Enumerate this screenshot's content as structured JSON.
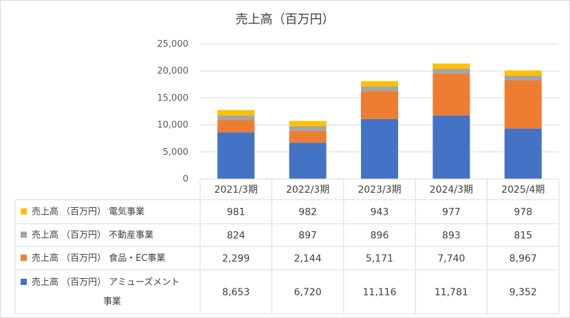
{
  "chart_data": {
    "type": "bar",
    "stacked": true,
    "title": "売上高（百万円）",
    "ylim": [
      0,
      25000
    ],
    "yticks": [
      "0",
      "5,000",
      "10,000",
      "15,000",
      "20,000",
      "25,000"
    ],
    "yticks_values": [
      0,
      5000,
      10000,
      15000,
      20000,
      25000
    ],
    "grid": true,
    "legend": "data-table",
    "categories": [
      "2021/3期",
      "2022/3期",
      "2023/3期",
      "2024/3期",
      "2025/4期"
    ],
    "series": [
      {
        "name": "売上高 （百万円） アミューズメント事業",
        "legend_line1": "売上高 （百万円） アミューズメント",
        "legend_line2": "事業",
        "color": "#4472c4",
        "values": [
          8653,
          6720,
          11116,
          11781,
          9352
        ],
        "labels": [
          "8,653",
          "6,720",
          "11,116",
          "11,781",
          "9,352"
        ]
      },
      {
        "name": "売上高 （百万円） 食品・EC事業",
        "color": "#ed7d31",
        "values": [
          2299,
          2144,
          5171,
          7740,
          8967
        ],
        "labels": [
          "2,299",
          "2,144",
          "5,171",
          "7,740",
          "8,967"
        ]
      },
      {
        "name": "売上高 （百万円） 不動産事業",
        "color": "#a5a5a5",
        "values": [
          824,
          897,
          896,
          893,
          815
        ],
        "labels": [
          "824",
          "897",
          "896",
          "893",
          "815"
        ]
      },
      {
        "name": "売上高 （百万円） 電気事業",
        "color": "#ffc000",
        "values": [
          981,
          982,
          943,
          977,
          978
        ],
        "labels": [
          "981",
          "982",
          "943",
          "977",
          "978"
        ]
      }
    ]
  }
}
